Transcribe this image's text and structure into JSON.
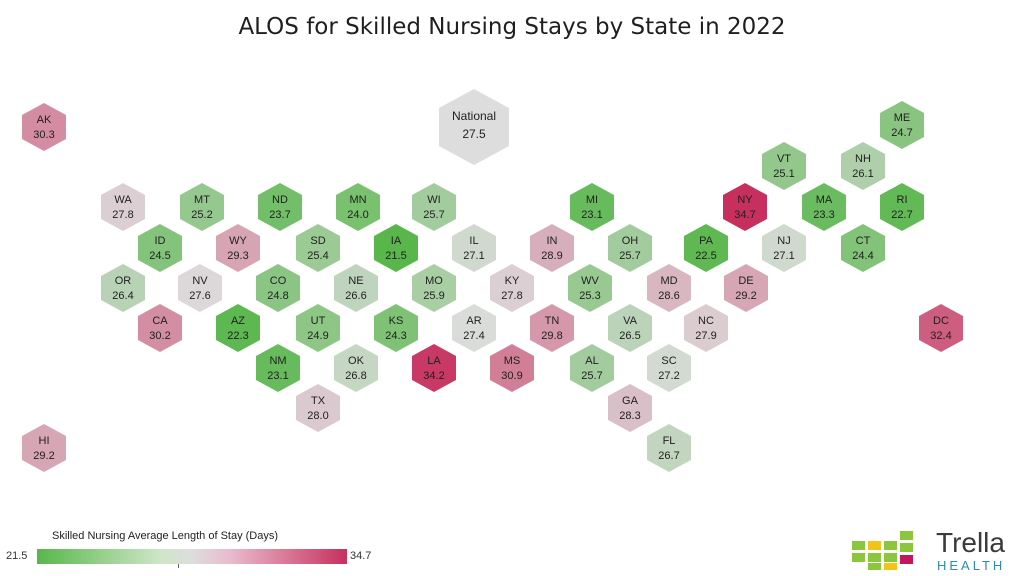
{
  "title": "ALOS for Skilled Nursing Stays by State in 2022",
  "scale": {
    "min": 21.5,
    "mid": 27.5,
    "max": 34.7,
    "low_color": "#58b64b",
    "mid_color": "#dddddd",
    "high_color": "#c7305e"
  },
  "legend": {
    "title": "Skilled Nursing Average Length of Stay (Days)",
    "min_label": "21.5",
    "max_label": "34.7"
  },
  "brand": {
    "name": "Trella",
    "sub": "HEALTH",
    "icon": "trella-logo-icon"
  },
  "national": {
    "label": "National",
    "value": 27.5
  },
  "states": [
    {
      "abbr": "AK",
      "value": 30.3
    },
    {
      "abbr": "ME",
      "value": 24.7
    },
    {
      "abbr": "VT",
      "value": 25.1
    },
    {
      "abbr": "NH",
      "value": 26.1
    },
    {
      "abbr": "WA",
      "value": 27.8
    },
    {
      "abbr": "MT",
      "value": 25.2
    },
    {
      "abbr": "ND",
      "value": 23.7
    },
    {
      "abbr": "MN",
      "value": 24.0
    },
    {
      "abbr": "WI",
      "value": 25.7
    },
    {
      "abbr": "MI",
      "value": 23.1
    },
    {
      "abbr": "NY",
      "value": 34.7
    },
    {
      "abbr": "MA",
      "value": 23.3
    },
    {
      "abbr": "RI",
      "value": 22.7
    },
    {
      "abbr": "ID",
      "value": 24.5
    },
    {
      "abbr": "WY",
      "value": 29.3
    },
    {
      "abbr": "SD",
      "value": 25.4
    },
    {
      "abbr": "IA",
      "value": 21.5
    },
    {
      "abbr": "IL",
      "value": 27.1
    },
    {
      "abbr": "IN",
      "value": 28.9
    },
    {
      "abbr": "OH",
      "value": 25.7
    },
    {
      "abbr": "PA",
      "value": 22.5
    },
    {
      "abbr": "NJ",
      "value": 27.1
    },
    {
      "abbr": "CT",
      "value": 24.4
    },
    {
      "abbr": "OR",
      "value": 26.4
    },
    {
      "abbr": "NV",
      "value": 27.6
    },
    {
      "abbr": "CO",
      "value": 24.8
    },
    {
      "abbr": "NE",
      "value": 26.6
    },
    {
      "abbr": "MO",
      "value": 25.9
    },
    {
      "abbr": "KY",
      "value": 27.8
    },
    {
      "abbr": "WV",
      "value": 25.3
    },
    {
      "abbr": "MD",
      "value": 28.6
    },
    {
      "abbr": "DE",
      "value": 29.2
    },
    {
      "abbr": "CA",
      "value": 30.2
    },
    {
      "abbr": "AZ",
      "value": 22.3
    },
    {
      "abbr": "UT",
      "value": 24.9
    },
    {
      "abbr": "KS",
      "value": 24.3
    },
    {
      "abbr": "AR",
      "value": 27.4
    },
    {
      "abbr": "TN",
      "value": 29.8
    },
    {
      "abbr": "VA",
      "value": 26.5
    },
    {
      "abbr": "NC",
      "value": 27.9
    },
    {
      "abbr": "DC",
      "value": 32.4
    },
    {
      "abbr": "NM",
      "value": 23.1
    },
    {
      "abbr": "OK",
      "value": 26.8
    },
    {
      "abbr": "LA",
      "value": 34.2
    },
    {
      "abbr": "MS",
      "value": 30.9
    },
    {
      "abbr": "AL",
      "value": 25.7
    },
    {
      "abbr": "SC",
      "value": 27.2
    },
    {
      "abbr": "TX",
      "value": 28.0
    },
    {
      "abbr": "GA",
      "value": 28.3
    },
    {
      "abbr": "HI",
      "value": 29.2
    },
    {
      "abbr": "FL",
      "value": 26.7
    }
  ]
}
